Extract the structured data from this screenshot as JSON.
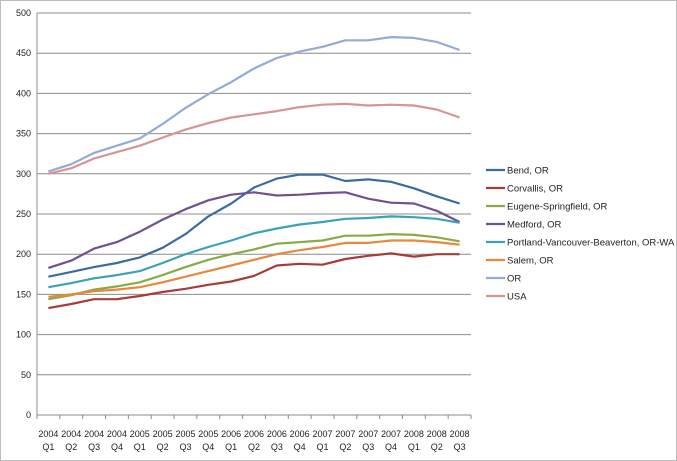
{
  "chart_data": {
    "type": "line",
    "title": "",
    "xlabel": "",
    "ylabel": "",
    "ylim": [
      0,
      500
    ],
    "yticks": [
      0,
      50,
      100,
      150,
      200,
      250,
      300,
      350,
      400,
      450,
      500
    ],
    "grid": true,
    "legend_position": "right",
    "categories": [
      [
        "2004",
        "Q1"
      ],
      [
        "2004",
        "Q2"
      ],
      [
        "2004",
        "Q3"
      ],
      [
        "2004",
        "Q4"
      ],
      [
        "2005",
        "Q1"
      ],
      [
        "2005",
        "Q2"
      ],
      [
        "2005",
        "Q3"
      ],
      [
        "2005",
        "Q4"
      ],
      [
        "2006",
        "Q1"
      ],
      [
        "2006",
        "Q2"
      ],
      [
        "2006",
        "Q3"
      ],
      [
        "2006",
        "Q4"
      ],
      [
        "2007",
        "Q1"
      ],
      [
        "2007",
        "Q2"
      ],
      [
        "2007",
        "Q3"
      ],
      [
        "2007",
        "Q4"
      ],
      [
        "2008",
        "Q1"
      ],
      [
        "2008",
        "Q2"
      ],
      [
        "2008",
        "Q3"
      ]
    ],
    "series": [
      {
        "name": "Bend, OR",
        "color": "#3d6aa2",
        "values": [
          172,
          178,
          184,
          189,
          196,
          208,
          225,
          247,
          263,
          283,
          294,
          299,
          299,
          291,
          293,
          290,
          282,
          272,
          263
        ]
      },
      {
        "name": "Corvallis, OR",
        "color": "#a83c3a",
        "values": [
          133,
          138,
          144,
          144,
          148,
          153,
          157,
          162,
          166,
          173,
          186,
          188,
          187,
          194,
          198,
          201,
          197,
          200,
          200
        ]
      },
      {
        "name": "Eugene-Springfield, OR",
        "color": "#8aaa48",
        "values": [
          144,
          149,
          156,
          160,
          165,
          174,
          184,
          193,
          200,
          206,
          213,
          215,
          217,
          223,
          223,
          225,
          224,
          221,
          216
        ]
      },
      {
        "name": "Medford, OR",
        "color": "#6e5292",
        "values": [
          183,
          192,
          207,
          215,
          228,
          243,
          256,
          267,
          274,
          277,
          273,
          274,
          276,
          277,
          269,
          264,
          263,
          254,
          240
        ]
      },
      {
        "name": "Portland-Vancouver-Beaverton, OR-WA",
        "color": "#3ba2b8",
        "values": [
          159,
          164,
          170,
          174,
          179,
          189,
          200,
          209,
          217,
          226,
          232,
          237,
          240,
          244,
          245,
          247,
          246,
          244,
          239
        ]
      },
      {
        "name": "Salem, OR",
        "color": "#e8883a",
        "values": [
          147,
          150,
          154,
          156,
          159,
          165,
          172,
          179,
          186,
          193,
          200,
          205,
          209,
          214,
          214,
          217,
          217,
          215,
          212
        ]
      },
      {
        "name": "OR",
        "color": "#94abd4",
        "values": [
          303,
          312,
          326,
          335,
          344,
          362,
          382,
          399,
          414,
          431,
          444,
          452,
          458,
          466,
          466,
          470,
          469,
          464,
          454
        ]
      },
      {
        "name": "USA",
        "color": "#d69594",
        "values": [
          300,
          307,
          319,
          327,
          335,
          345,
          355,
          363,
          370,
          374,
          378,
          383,
          386,
          387,
          385,
          386,
          385,
          380,
          370
        ]
      }
    ]
  }
}
